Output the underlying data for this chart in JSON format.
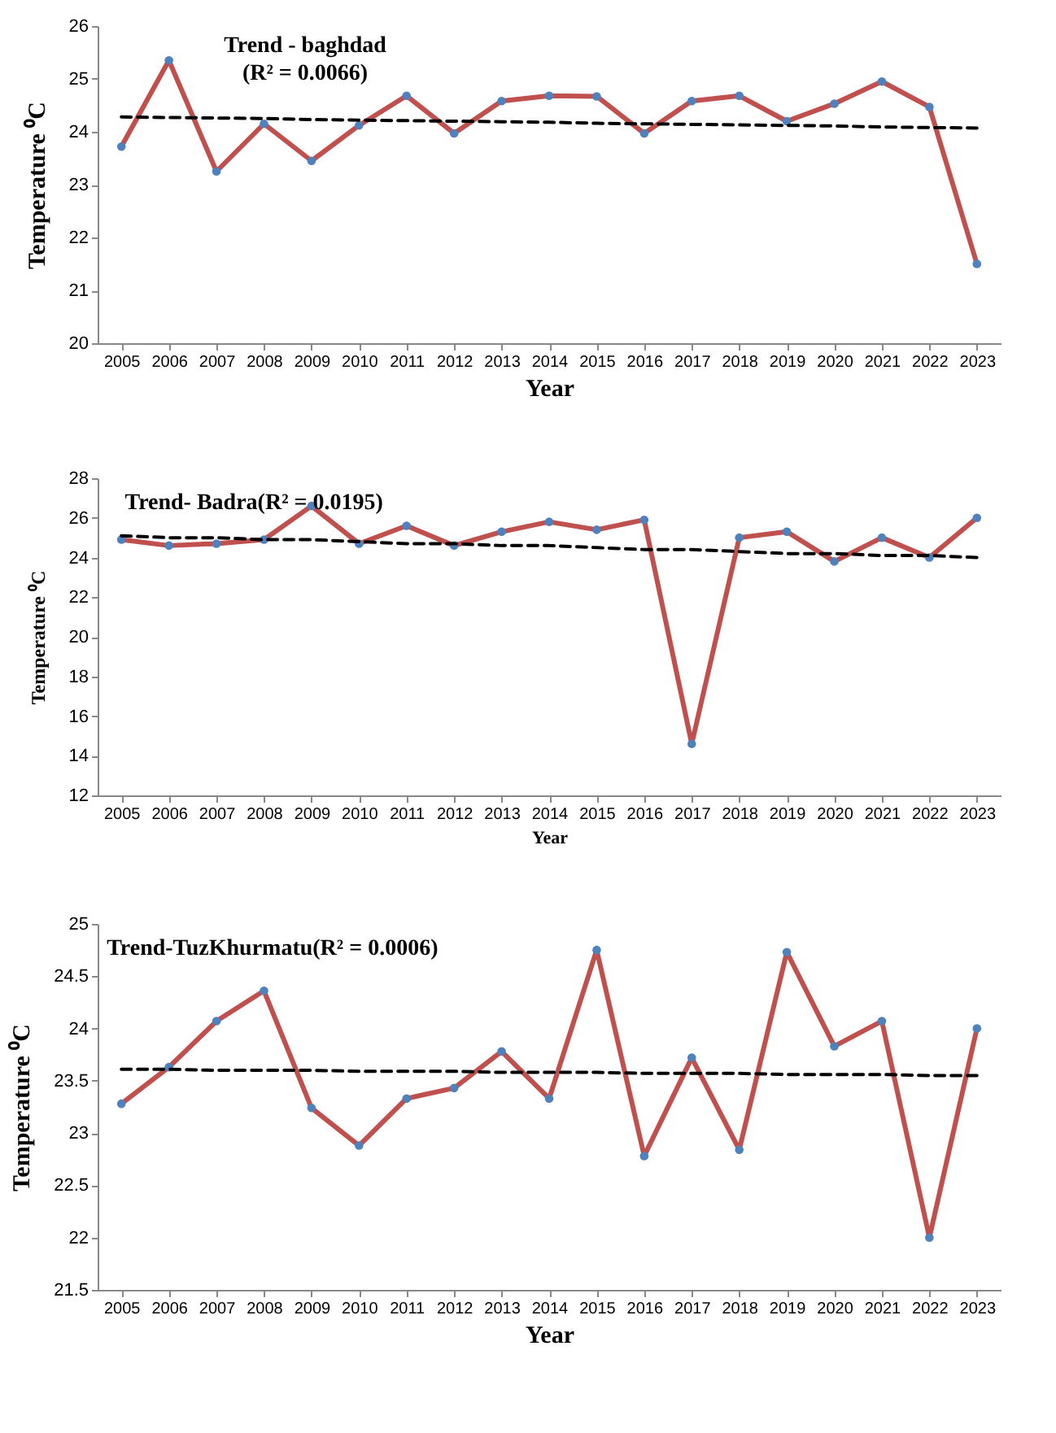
{
  "chart_data": [
    {
      "type": "line",
      "title": "Trend - baghdad",
      "subtitle": "(R² = 0.0066)",
      "xlabel": "Year",
      "ylabel": "Temperature ⁰C",
      "categories": [
        "2005",
        "2006",
        "2007",
        "2008",
        "2009",
        "2010",
        "2011",
        "2012",
        "2013",
        "2014",
        "2015",
        "2016",
        "2017",
        "2018",
        "2019",
        "2020",
        "2021",
        "2022",
        "2023"
      ],
      "ylim": [
        20,
        26
      ],
      "yticks": [
        20,
        21,
        22,
        23,
        24,
        25,
        26
      ],
      "grid": false,
      "series": [
        {
          "color": "#c0504d",
          "marker": "circle",
          "line_style": "solid",
          "values": [
            23.72,
            25.35,
            23.25,
            24.15,
            23.45,
            24.12,
            24.68,
            23.97,
            24.58,
            24.68,
            24.67,
            23.97,
            24.58,
            24.68,
            24.2,
            24.53,
            24.95,
            24.47,
            21.5
          ]
        },
        {
          "color": "#000000",
          "marker": "none",
          "line_style": "dashed",
          "values": [
            24.28,
            24.27,
            24.26,
            24.25,
            24.23,
            24.22,
            24.21,
            24.2,
            24.19,
            24.18,
            24.16,
            24.15,
            24.14,
            24.13,
            24.12,
            24.11,
            24.09,
            24.08,
            24.07
          ]
        }
      ]
    },
    {
      "type": "line",
      "title": "Trend- Badra(R² = 0.0195)",
      "xlabel": "Year",
      "ylabel": "Temperature ⁰C",
      "categories": [
        "2005",
        "2006",
        "2007",
        "2008",
        "2009",
        "2010",
        "2011",
        "2012",
        "2013",
        "2014",
        "2015",
        "2016",
        "2017",
        "2018",
        "2019",
        "2020",
        "2021",
        "2022",
        "2023"
      ],
      "ylim": [
        12,
        28
      ],
      "yticks": [
        12,
        14,
        16,
        18,
        20,
        22,
        24,
        26,
        28
      ],
      "grid": false,
      "series": [
        {
          "color": "#c0504d",
          "marker": "circle",
          "line_style": "solid",
          "values": [
            24.9,
            24.6,
            24.7,
            24.9,
            26.6,
            24.7,
            25.6,
            24.6,
            25.3,
            25.8,
            25.4,
            25.9,
            14.6,
            25.0,
            25.3,
            23.8,
            25.0,
            24.0,
            26.0
          ]
        },
        {
          "color": "#000000",
          "marker": "none",
          "line_style": "dashed",
          "values": [
            25.1,
            25.0,
            25.0,
            24.9,
            24.9,
            24.8,
            24.7,
            24.7,
            24.6,
            24.6,
            24.5,
            24.4,
            24.4,
            24.3,
            24.2,
            24.2,
            24.1,
            24.1,
            24.0
          ]
        }
      ]
    },
    {
      "type": "line",
      "title": "Trend-TuzKhurmatu(R² = 0.0006)",
      "xlabel": "Year",
      "ylabel": "Temperature ⁰C",
      "categories": [
        "2005",
        "2006",
        "2007",
        "2008",
        "2009",
        "2010",
        "2011",
        "2012",
        "2013",
        "2014",
        "2015",
        "2016",
        "2017",
        "2018",
        "2019",
        "2020",
        "2021",
        "2022",
        "2023"
      ],
      "ylim": [
        21.5,
        25
      ],
      "yticks": [
        21.5,
        22,
        22.5,
        23,
        23.5,
        24,
        24.5,
        25
      ],
      "grid": false,
      "series": [
        {
          "color": "#c0504d",
          "marker": "circle",
          "line_style": "solid",
          "values": [
            23.28,
            23.63,
            24.07,
            24.36,
            23.24,
            22.88,
            23.33,
            23.43,
            23.78,
            23.33,
            24.75,
            22.78,
            23.72,
            22.84,
            24.73,
            23.83,
            24.07,
            22.0,
            24.0
          ]
        },
        {
          "color": "#000000",
          "marker": "none",
          "line_style": "dashed",
          "values": [
            23.61,
            23.61,
            23.6,
            23.6,
            23.6,
            23.59,
            23.59,
            23.59,
            23.58,
            23.58,
            23.58,
            23.57,
            23.57,
            23.57,
            23.56,
            23.56,
            23.56,
            23.55,
            23.55
          ]
        }
      ]
    }
  ]
}
